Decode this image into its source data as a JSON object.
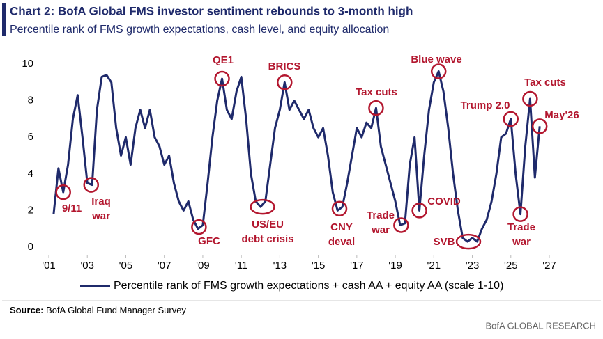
{
  "chart_data": {
    "type": "line",
    "title": "Chart 2: BofA Global FMS investor sentiment rebounds to 3-month high",
    "subtitle": "Percentile rank of FMS growth expectations, cash level, and equity allocation",
    "source_label": "Source:",
    "source": "BofA Global Fund Manager Survey",
    "footer": "BofA GLOBAL RESEARCH",
    "x": [
      2001.25,
      2001.5,
      2001.75,
      2002,
      2002.25,
      2002.5,
      2002.75,
      2003,
      2003.25,
      2003.5,
      2003.75,
      2004,
      2004.25,
      2004.5,
      2004.75,
      2005,
      2005.25,
      2005.5,
      2005.75,
      2006,
      2006.25,
      2006.5,
      2006.75,
      2007,
      2007.25,
      2007.5,
      2007.75,
      2008,
      2008.25,
      2008.5,
      2008.75,
      2009,
      2009.25,
      2009.5,
      2009.75,
      2010,
      2010.25,
      2010.5,
      2010.75,
      2011,
      2011.25,
      2011.5,
      2011.75,
      2012,
      2012.25,
      2012.5,
      2012.75,
      2013,
      2013.25,
      2013.5,
      2013.75,
      2014,
      2014.25,
      2014.5,
      2014.75,
      2015,
      2015.25,
      2015.5,
      2015.75,
      2016,
      2016.25,
      2016.5,
      2016.75,
      2017,
      2017.25,
      2017.5,
      2017.75,
      2018,
      2018.25,
      2018.5,
      2018.75,
      2019,
      2019.25,
      2019.5,
      2019.75,
      2020,
      2020.25,
      2020.5,
      2020.75,
      2021,
      2021.25,
      2021.5,
      2021.75,
      2022,
      2022.25,
      2022.5,
      2022.75,
      2023,
      2023.25,
      2023.5,
      2023.75,
      2024,
      2024.25,
      2024.5,
      2024.75,
      2025,
      2025.25,
      2025.5,
      2025.75,
      2026,
      2026.25,
      2026.5
    ],
    "series": [
      {
        "name": "Percentile rank of FMS growth expectations + cash AA + equity AA (scale 1-10)",
        "color": "#1f2a6b",
        "values": [
          1.8,
          4.3,
          3.0,
          4.5,
          7.0,
          8.3,
          6.0,
          3.5,
          3.4,
          7.5,
          9.3,
          9.4,
          9.0,
          6.5,
          5.0,
          6.0,
          4.5,
          6.5,
          7.5,
          6.5,
          7.5,
          6.0,
          5.5,
          4.5,
          5.0,
          3.5,
          2.5,
          2.0,
          2.5,
          1.5,
          1.0,
          1.2,
          3.5,
          6.0,
          8.0,
          9.2,
          7.5,
          7.0,
          8.5,
          9.3,
          7.0,
          4.0,
          2.5,
          2.2,
          2.5,
          4.5,
          6.5,
          7.5,
          9.0,
          7.5,
          8.0,
          7.5,
          7.0,
          7.5,
          6.5,
          6.0,
          6.5,
          5.0,
          3.0,
          2.0,
          2.2,
          3.5,
          5.0,
          6.5,
          6.0,
          6.8,
          6.5,
          7.6,
          5.5,
          4.5,
          3.5,
          2.5,
          1.2,
          1.3,
          4.5,
          6.0,
          2.0,
          5.0,
          7.5,
          9.0,
          9.6,
          8.5,
          6.5,
          4.0,
          2.0,
          0.5,
          0.3,
          0.5,
          0.3,
          1.0,
          1.5,
          2.5,
          4.0,
          6.0,
          6.2,
          7.0,
          4.0,
          1.8,
          5.5,
          8.1,
          3.8,
          6.6
        ]
      }
    ],
    "xlim": [
      2000.9,
      2027.8
    ],
    "xticks": [
      {
        "value": 2001,
        "label": "'01"
      },
      {
        "value": 2003,
        "label": "'03"
      },
      {
        "value": 2005,
        "label": "'05"
      },
      {
        "value": 2007,
        "label": "'07"
      },
      {
        "value": 2009,
        "label": "'09"
      },
      {
        "value": 2011,
        "label": "'11"
      },
      {
        "value": 2013,
        "label": "'13"
      },
      {
        "value": 2015,
        "label": "'15"
      },
      {
        "value": 2017,
        "label": "'17"
      },
      {
        "value": 2019,
        "label": "'19"
      },
      {
        "value": 2021,
        "label": "'21"
      },
      {
        "value": 2023,
        "label": "'23"
      },
      {
        "value": 2025,
        "label": "'25"
      },
      {
        "value": 2027,
        "label": "'27"
      }
    ],
    "ylim": [
      -0.3,
      10.5
    ],
    "yticks": [
      0,
      2,
      4,
      6,
      8,
      10
    ],
    "grid": false,
    "annotations": [
      {
        "lines": [
          "9/11"
        ],
        "x": 2001.75,
        "y": 3.0
      },
      {
        "lines": [
          "Iraq",
          "war"
        ],
        "x": 2003.2,
        "y": 3.4
      },
      {
        "lines": [
          "GFC"
        ],
        "x": 2008.8,
        "y": 1.1
      },
      {
        "lines": [
          "QE1"
        ],
        "x": 2010,
        "y": 9.2
      },
      {
        "lines": [
          "US/EU",
          "debt crisis"
        ],
        "x": 2012.1,
        "y": 2.2
      },
      {
        "lines": [
          "BRICS"
        ],
        "x": 2013.25,
        "y": 9.0
      },
      {
        "lines": [
          "CNY",
          "deval"
        ],
        "x": 2016.1,
        "y": 2.1
      },
      {
        "lines": [
          "Tax cuts"
        ],
        "x": 2018,
        "y": 7.6
      },
      {
        "lines": [
          "Trade",
          "war"
        ],
        "x": 2019.3,
        "y": 1.2
      },
      {
        "lines": [
          "COVID"
        ],
        "x": 2020.25,
        "y": 2.0
      },
      {
        "lines": [
          "Blue wave"
        ],
        "x": 2021.25,
        "y": 9.6
      },
      {
        "lines": [
          "SVB"
        ],
        "x": 2022.8,
        "y": 0.3
      },
      {
        "lines": [
          "Trump 2.0"
        ],
        "x": 2025,
        "y": 7.0
      },
      {
        "lines": [
          "Trade",
          "war"
        ],
        "x": 2025.5,
        "y": 1.8
      },
      {
        "lines": [
          "Tax cuts"
        ],
        "x": 2026,
        "y": 8.1
      },
      {
        "lines": [
          "May'26"
        ],
        "x": 2026.5,
        "y": 6.6
      }
    ]
  }
}
